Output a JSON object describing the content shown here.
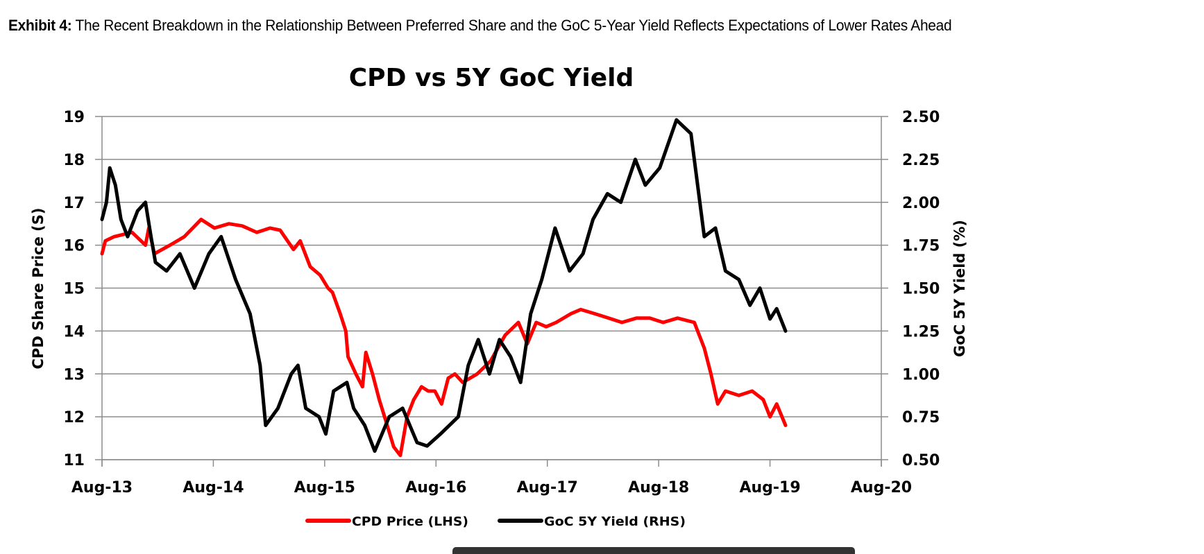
{
  "exhibit": {
    "label": "Exhibit 4:",
    "caption": " The Recent Breakdown in the Relationship Between Preferred Share and the GoC 5-Year Yield Reflects Expectations of Lower Rates Ahead"
  },
  "chart_data": {
    "type": "line",
    "title": "CPD vs 5Y GoC Yield",
    "xlabel": "",
    "ylabel": "CPD Share Price (S)",
    "y2label": "GoC 5Y Yield (%)",
    "x_ticks": [
      "Aug-13",
      "Aug-14",
      "Aug-15",
      "Aug-16",
      "Aug-17",
      "Aug-18",
      "Aug-19",
      "Aug-20"
    ],
    "xlim_years_from_aug13": [
      0,
      7
    ],
    "ylim": [
      11,
      19
    ],
    "y_ticks": [
      "19",
      "18",
      "17",
      "16",
      "15",
      "14",
      "13",
      "12",
      "11"
    ],
    "y2lim": [
      0.5,
      2.5
    ],
    "y2_ticks": [
      "2.50",
      "2.25",
      "2.00",
      "1.75",
      "1.50",
      "1.25",
      "1.00",
      "0.75",
      "0.50"
    ],
    "grid": true,
    "legend_position": "bottom",
    "series": [
      {
        "name": "CPD Price (LHS)",
        "axis": "left",
        "color": "#ff0000",
        "points": [
          [
            0.0,
            15.8
          ],
          [
            0.03,
            16.1
          ],
          [
            0.11,
            16.2
          ],
          [
            0.27,
            16.3
          ],
          [
            0.39,
            16.0
          ],
          [
            0.42,
            16.4
          ],
          [
            0.47,
            15.8
          ],
          [
            0.61,
            16.0
          ],
          [
            0.74,
            16.2
          ],
          [
            0.89,
            16.6
          ],
          [
            1.01,
            16.4
          ],
          [
            1.14,
            16.5
          ],
          [
            1.26,
            16.45
          ],
          [
            1.39,
            16.3
          ],
          [
            1.51,
            16.4
          ],
          [
            1.6,
            16.35
          ],
          [
            1.64,
            16.2
          ],
          [
            1.72,
            15.9
          ],
          [
            1.78,
            16.1
          ],
          [
            1.87,
            15.5
          ],
          [
            1.96,
            15.3
          ],
          [
            2.03,
            15.0
          ],
          [
            2.07,
            14.9
          ],
          [
            2.14,
            14.4
          ],
          [
            2.19,
            14.0
          ],
          [
            2.21,
            13.4
          ],
          [
            2.28,
            13.0
          ],
          [
            2.34,
            12.7
          ],
          [
            2.37,
            13.5
          ],
          [
            2.43,
            13.0
          ],
          [
            2.49,
            12.4
          ],
          [
            2.55,
            11.9
          ],
          [
            2.62,
            11.3
          ],
          [
            2.68,
            11.1
          ],
          [
            2.74,
            12.0
          ],
          [
            2.8,
            12.4
          ],
          [
            2.87,
            12.7
          ],
          [
            2.93,
            12.6
          ],
          [
            2.99,
            12.6
          ],
          [
            3.05,
            12.3
          ],
          [
            3.11,
            12.9
          ],
          [
            3.17,
            13.0
          ],
          [
            3.24,
            12.8
          ],
          [
            3.37,
            13.0
          ],
          [
            3.49,
            13.3
          ],
          [
            3.62,
            13.9
          ],
          [
            3.74,
            14.2
          ],
          [
            3.82,
            13.7
          ],
          [
            3.9,
            14.2
          ],
          [
            3.99,
            14.1
          ],
          [
            4.08,
            14.2
          ],
          [
            4.21,
            14.4
          ],
          [
            4.3,
            14.5
          ],
          [
            4.43,
            14.4
          ],
          [
            4.55,
            14.3
          ],
          [
            4.67,
            14.2
          ],
          [
            4.8,
            14.3
          ],
          [
            4.92,
            14.3
          ],
          [
            5.04,
            14.2
          ],
          [
            5.17,
            14.3
          ],
          [
            5.32,
            14.2
          ],
          [
            5.41,
            13.6
          ],
          [
            5.47,
            13.0
          ],
          [
            5.53,
            12.3
          ],
          [
            5.6,
            12.6
          ],
          [
            5.72,
            12.5
          ],
          [
            5.84,
            12.6
          ],
          [
            5.94,
            12.4
          ],
          [
            6.0,
            12.0
          ],
          [
            6.06,
            12.3
          ],
          [
            6.14,
            11.8
          ]
        ]
      },
      {
        "name": "GoC 5Y Yield (RHS)",
        "axis": "right",
        "color": "#000000",
        "points": [
          [
            0.0,
            1.9
          ],
          [
            0.04,
            2.0
          ],
          [
            0.07,
            2.2
          ],
          [
            0.12,
            2.1
          ],
          [
            0.17,
            1.9
          ],
          [
            0.23,
            1.8
          ],
          [
            0.32,
            1.95
          ],
          [
            0.39,
            2.0
          ],
          [
            0.44,
            1.8
          ],
          [
            0.48,
            1.65
          ],
          [
            0.58,
            1.6
          ],
          [
            0.7,
            1.7
          ],
          [
            0.83,
            1.5
          ],
          [
            0.96,
            1.7
          ],
          [
            1.07,
            1.8
          ],
          [
            1.2,
            1.55
          ],
          [
            1.33,
            1.35
          ],
          [
            1.42,
            1.05
          ],
          [
            1.47,
            0.7
          ],
          [
            1.58,
            0.8
          ],
          [
            1.7,
            1.0
          ],
          [
            1.76,
            1.05
          ],
          [
            1.83,
            0.8
          ],
          [
            1.95,
            0.75
          ],
          [
            2.01,
            0.65
          ],
          [
            2.08,
            0.9
          ],
          [
            2.2,
            0.95
          ],
          [
            2.26,
            0.8
          ],
          [
            2.36,
            0.7
          ],
          [
            2.45,
            0.55
          ],
          [
            2.58,
            0.75
          ],
          [
            2.7,
            0.8
          ],
          [
            2.83,
            0.6
          ],
          [
            2.92,
            0.58
          ],
          [
            3.04,
            0.65
          ],
          [
            3.2,
            0.75
          ],
          [
            3.29,
            1.05
          ],
          [
            3.38,
            1.2
          ],
          [
            3.48,
            1.0
          ],
          [
            3.57,
            1.2
          ],
          [
            3.67,
            1.1
          ],
          [
            3.76,
            0.95
          ],
          [
            3.85,
            1.35
          ],
          [
            3.95,
            1.55
          ],
          [
            4.07,
            1.85
          ],
          [
            4.2,
            1.6
          ],
          [
            4.32,
            1.7
          ],
          [
            4.41,
            1.9
          ],
          [
            4.54,
            2.05
          ],
          [
            4.66,
            2.0
          ],
          [
            4.79,
            2.25
          ],
          [
            4.88,
            2.1
          ],
          [
            5.01,
            2.2
          ],
          [
            5.16,
            2.48
          ],
          [
            5.29,
            2.4
          ],
          [
            5.35,
            2.1
          ],
          [
            5.41,
            1.8
          ],
          [
            5.51,
            1.85
          ],
          [
            5.6,
            1.6
          ],
          [
            5.72,
            1.55
          ],
          [
            5.82,
            1.4
          ],
          [
            5.91,
            1.5
          ],
          [
            6.0,
            1.32
          ],
          [
            6.06,
            1.38
          ],
          [
            6.14,
            1.25
          ]
        ]
      }
    ]
  }
}
